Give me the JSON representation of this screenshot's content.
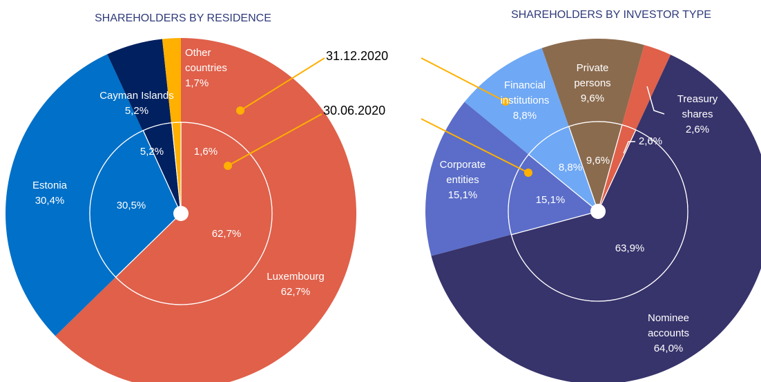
{
  "chart_data": [
    {
      "type": "donut",
      "title": "SHAREHOLDERS  BY RESIDENCE",
      "categories": [
        "Luxembourg",
        "Estonia",
        "Cayman Islands",
        "Other countries"
      ],
      "colors": [
        "#e0604a",
        "#0070c8",
        "#002060",
        "#ffb000"
      ],
      "start_angle": 0,
      "series": [
        {
          "values": [
            62.7,
            30.4,
            5.2,
            1.7
          ],
          "value_labels": [
            "62,7%",
            "30,4%",
            "5,2%",
            "1,7%"
          ]
        },
        {
          "values": [
            62.7,
            30.5,
            5.2,
            1.6
          ],
          "value_labels": [
            "62,7%",
            "30,5%",
            "5,2%",
            "1,6%"
          ]
        }
      ]
    },
    {
      "type": "donut",
      "title": "SHAREHOLDERS BY INVESTOR TYPE",
      "categories": [
        "Private persons",
        "Treasury shares",
        "Nominee accounts",
        "Corporate entities",
        "Financial institutions"
      ],
      "colors": [
        "#8b6b4e",
        "#e0604a",
        "#37336b",
        "#5b6dc8",
        "#6fa8f5"
      ],
      "start_angle": -19,
      "series": [
        {
          "values": [
            9.6,
            2.6,
            64.0,
            15.1,
            8.8
          ],
          "value_labels": [
            "9,6%",
            "2,6%",
            "64,0%",
            "15,1%",
            "8,8%"
          ]
        },
        {
          "values": [
            9.6,
            2.6,
            63.9,
            15.1,
            8.8
          ],
          "value_labels": [
            "9,6%",
            "2,6%",
            "63,9%",
            "15,1%",
            "8,8%"
          ]
        }
      ]
    }
  ],
  "annotations": [
    "31.12.2020",
    "30.06.2020"
  ]
}
